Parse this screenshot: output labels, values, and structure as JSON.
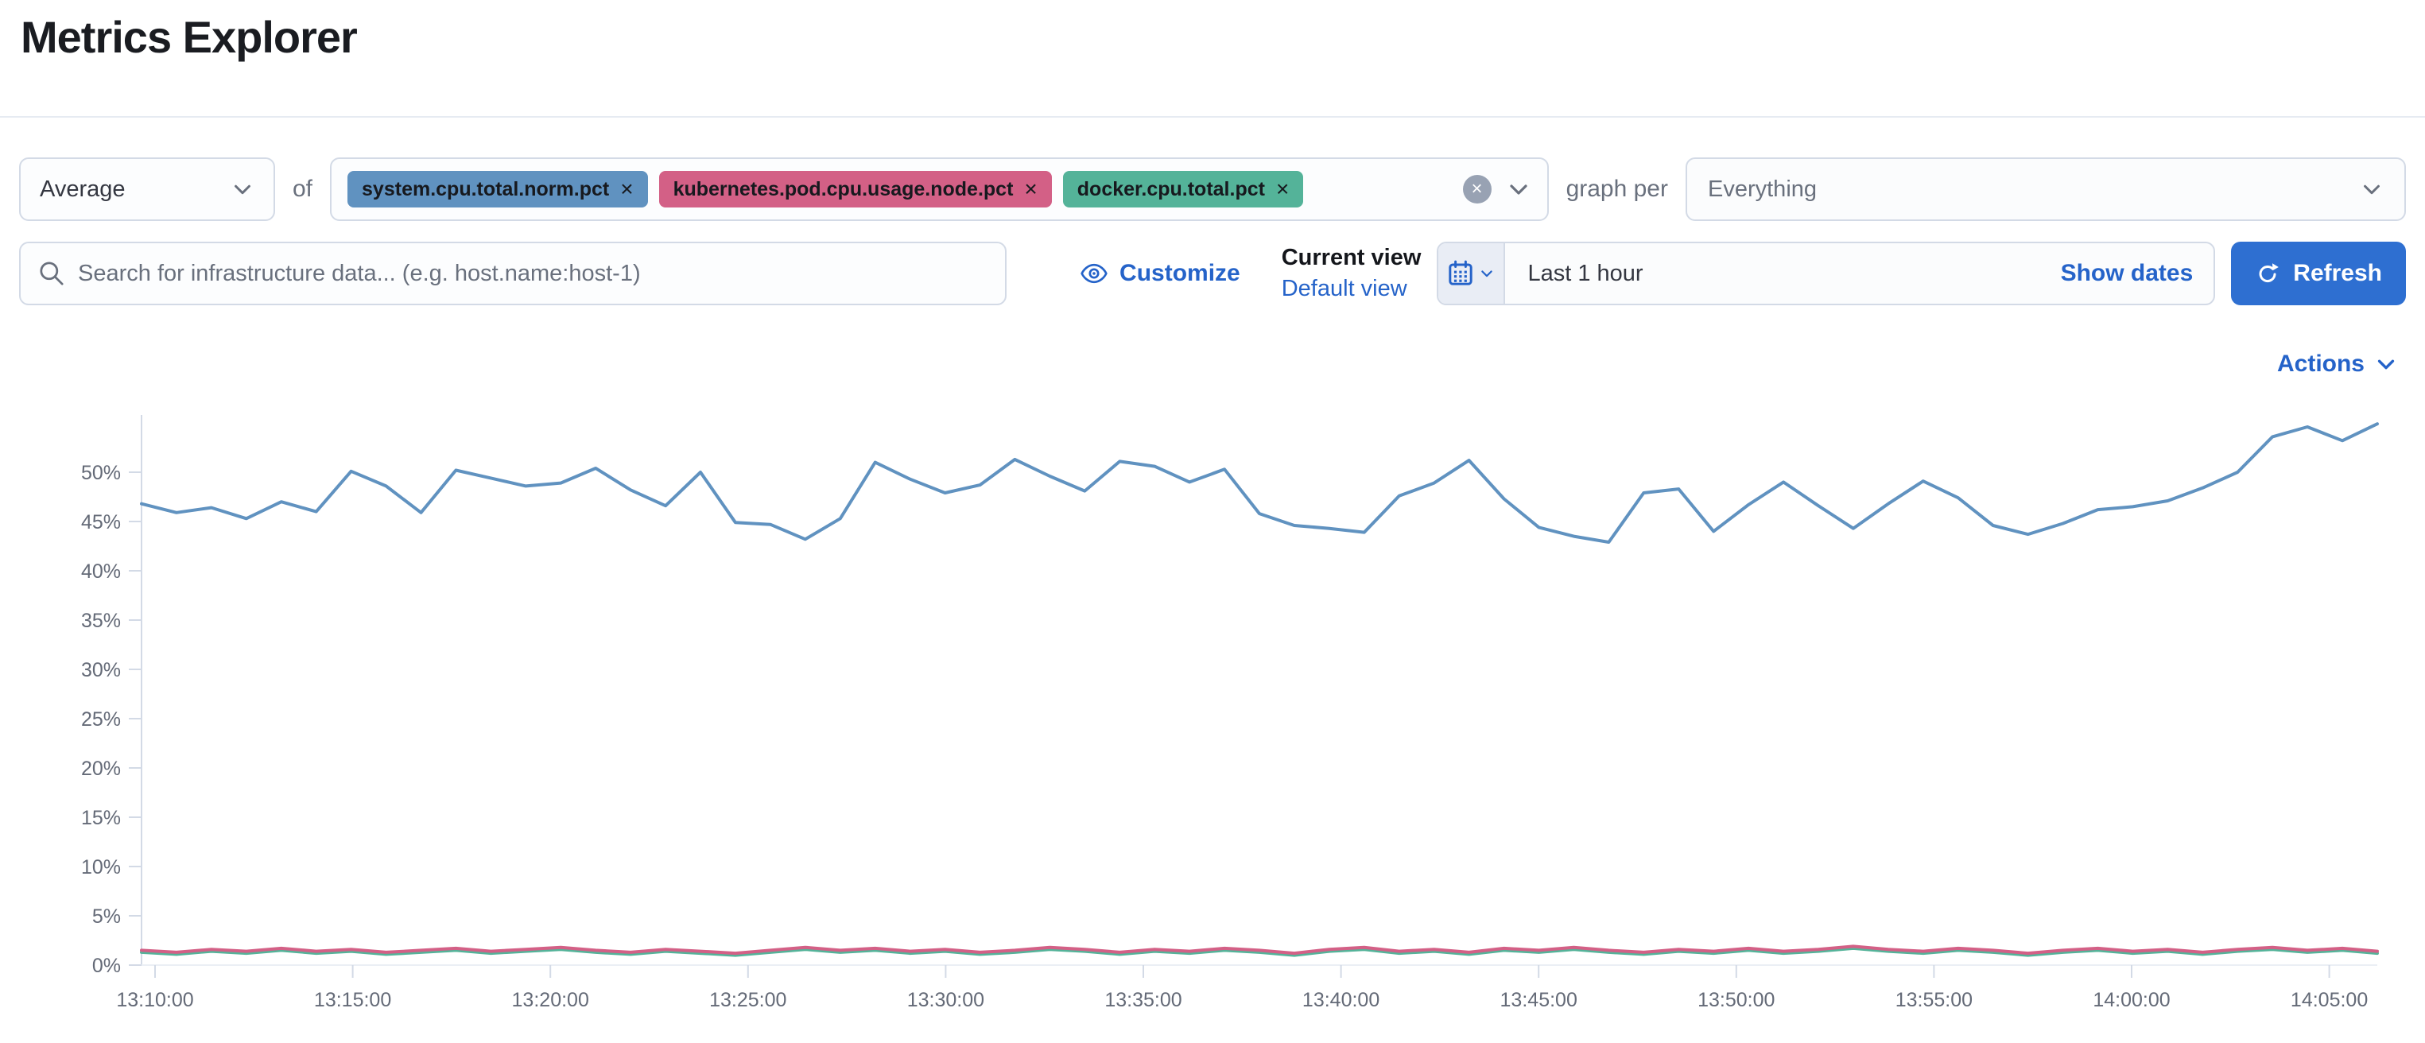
{
  "title": "Metrics Explorer",
  "row1": {
    "aggregation_value": "Average",
    "of_label": "of",
    "metric_badges": [
      {
        "label": "system.cpu.total.norm.pct",
        "remove_label": "×",
        "color": "#6092C0"
      },
      {
        "label": "kubernetes.pod.cpu.usage.node.pct",
        "remove_label": "×",
        "color": "#D36086"
      },
      {
        "label": "docker.cpu.total.pct",
        "remove_label": "×",
        "color": "#54B399"
      }
    ],
    "clear_label": "×",
    "graph_per_label": "graph per",
    "graph_per_value": "Everything"
  },
  "row2": {
    "search_placeholder": "Search for infrastructure data... (e.g. host.name:host-1)",
    "customize_label": "Customize",
    "current_view_label": "Current view",
    "default_view_label": "Default view",
    "time_range_value": "Last 1 hour",
    "show_dates_label": "Show dates",
    "refresh_label": "Refresh"
  },
  "chart": {
    "actions_label": "Actions"
  },
  "chart_data": {
    "type": "line",
    "title": "",
    "xlabel": "",
    "ylabel": "",
    "y_unit": "%",
    "ylim": [
      0,
      55
    ],
    "y_ticks": [
      0,
      5,
      10,
      15,
      20,
      25,
      30,
      35,
      40,
      45,
      50
    ],
    "x_tick_labels": [
      "13:10:00",
      "13:15:00",
      "13:20:00",
      "13:25:00",
      "13:30:00",
      "13:35:00",
      "13:40:00",
      "13:45:00",
      "13:50:00",
      "13:55:00",
      "14:00:00",
      "14:05:00"
    ],
    "x_range": [
      "13:08:00",
      "14:08:00"
    ],
    "grid": false,
    "legend_position": "none",
    "series": [
      {
        "name": "docker.cpu.total.pct",
        "color": "#54B399",
        "values": [
          1.3,
          1.1,
          1.4,
          1.2,
          1.5,
          1.2,
          1.4,
          1.1,
          1.3,
          1.5,
          1.2,
          1.4,
          1.6,
          1.3,
          1.1,
          1.4,
          1.2,
          1.0,
          1.3,
          1.6,
          1.3,
          1.5,
          1.2,
          1.4,
          1.1,
          1.3,
          1.6,
          1.4,
          1.1,
          1.4,
          1.2,
          1.5,
          1.3,
          1.0,
          1.4,
          1.6,
          1.2,
          1.4,
          1.1,
          1.5,
          1.3,
          1.6,
          1.3,
          1.1,
          1.4,
          1.2,
          1.5,
          1.2,
          1.4,
          1.7,
          1.4,
          1.2,
          1.5,
          1.3,
          1.0,
          1.3,
          1.5,
          1.2,
          1.4,
          1.1,
          1.4,
          1.6,
          1.3,
          1.5,
          1.2
        ]
      },
      {
        "name": "kubernetes.pod.cpu.usage.node.pct",
        "color": "#D36086",
        "values": [
          1.5,
          1.3,
          1.6,
          1.4,
          1.7,
          1.4,
          1.6,
          1.3,
          1.5,
          1.7,
          1.4,
          1.6,
          1.8,
          1.5,
          1.3,
          1.6,
          1.4,
          1.2,
          1.5,
          1.8,
          1.5,
          1.7,
          1.4,
          1.6,
          1.3,
          1.5,
          1.8,
          1.6,
          1.3,
          1.6,
          1.4,
          1.7,
          1.5,
          1.2,
          1.6,
          1.8,
          1.4,
          1.6,
          1.3,
          1.7,
          1.5,
          1.8,
          1.5,
          1.3,
          1.6,
          1.4,
          1.7,
          1.4,
          1.6,
          1.9,
          1.6,
          1.4,
          1.7,
          1.5,
          1.2,
          1.5,
          1.7,
          1.4,
          1.6,
          1.3,
          1.6,
          1.8,
          1.5,
          1.7,
          1.4
        ]
      },
      {
        "name": "system.cpu.total.norm.pct",
        "color": "#6092C0",
        "values": [
          46.8,
          45.9,
          46.4,
          45.3,
          47.0,
          46.0,
          50.1,
          48.6,
          45.9,
          50.2,
          49.4,
          48.6,
          48.9,
          50.4,
          48.2,
          46.6,
          50.0,
          44.9,
          44.7,
          43.2,
          45.3,
          51.0,
          49.3,
          47.9,
          48.7,
          51.3,
          49.6,
          48.1,
          51.1,
          50.6,
          49.0,
          50.3,
          45.8,
          44.6,
          44.3,
          43.9,
          47.6,
          48.9,
          51.2,
          47.3,
          44.4,
          43.5,
          42.9,
          47.9,
          48.3,
          44.0,
          46.7,
          49.0,
          46.6,
          44.3,
          46.8,
          49.1,
          47.4,
          44.6,
          43.7,
          44.8,
          46.2,
          46.5,
          47.1,
          48.4,
          50.0,
          53.6,
          54.6,
          53.2,
          54.9
        ]
      }
    ]
  }
}
